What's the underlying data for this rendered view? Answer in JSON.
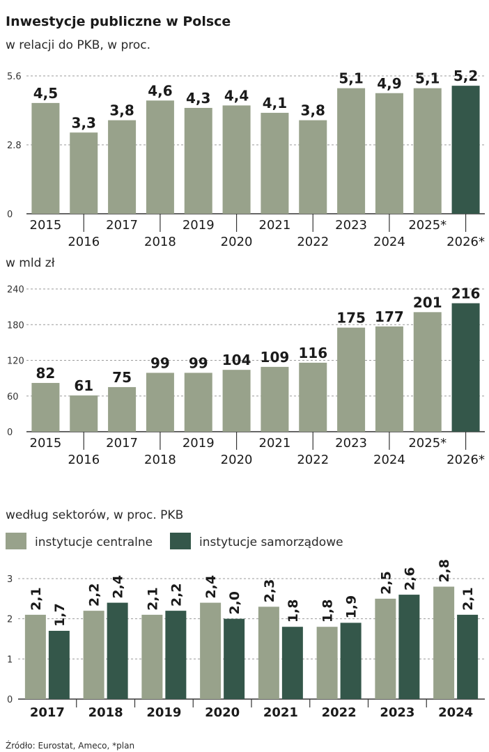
{
  "colors": {
    "bar_light": "#98a28b",
    "bar_dark": "#34574a",
    "text": "#1a1a1a"
  },
  "source": "Źródło: Eurostat, Ameco, *plan",
  "chart_data": [
    {
      "type": "bar",
      "title": "Inwestycje publiczne w Polsce",
      "subtitle": "w relacji do PKB, w proc.",
      "categories": [
        "2015",
        "2016",
        "2017",
        "2018",
        "2019",
        "2020",
        "2021",
        "2022",
        "2023",
        "2024",
        "2025*",
        "2026*"
      ],
      "values": [
        4.5,
        3.3,
        3.8,
        4.6,
        4.3,
        4.4,
        4.1,
        3.8,
        5.1,
        4.9,
        5.1,
        5.2
      ],
      "value_labels": [
        "4,5",
        "3,3",
        "3,8",
        "4,6",
        "4,3",
        "4,4",
        "4,1",
        "3,8",
        "5,1",
        "4,9",
        "5,1",
        "5,2"
      ],
      "highlight_index": 11,
      "yticks": [
        "0",
        "2.8",
        "5.6"
      ],
      "ylim": [
        0,
        5.6
      ],
      "grid": true
    },
    {
      "type": "bar",
      "subtitle": "w mld zł",
      "categories": [
        "2015",
        "2016",
        "2017",
        "2018",
        "2019",
        "2020",
        "2021",
        "2022",
        "2023",
        "2024",
        "2025*",
        "2026*"
      ],
      "values": [
        82,
        61,
        75,
        99,
        99,
        104,
        109,
        116,
        175,
        177,
        201,
        216
      ],
      "value_labels": [
        "82",
        "61",
        "75",
        "99",
        "99",
        "104",
        "109",
        "116",
        "175",
        "177",
        "201",
        "216"
      ],
      "highlight_index": 11,
      "yticks": [
        "0",
        "60",
        "120",
        "180",
        "240"
      ],
      "ylim": [
        0,
        240
      ],
      "grid": true
    },
    {
      "type": "bar",
      "subtitle": "według sektorów, w proc. PKB",
      "categories": [
        "2017",
        "2018",
        "2019",
        "2020",
        "2021",
        "2022",
        "2023",
        "2024"
      ],
      "series": [
        {
          "name": "instytucje centralne",
          "values": [
            2.1,
            2.2,
            2.1,
            2.4,
            2.3,
            1.8,
            2.5,
            2.8
          ],
          "value_labels": [
            "2,1",
            "2,2",
            "2,1",
            "2,4",
            "2,3",
            "1,8",
            "2,5",
            "2,8"
          ]
        },
        {
          "name": "instytucje samorządowe",
          "values": [
            1.7,
            2.4,
            2.2,
            2.0,
            1.8,
            1.9,
            2.6,
            2.1
          ],
          "value_labels": [
            "1,7",
            "2,4",
            "2,2",
            "2,0",
            "1,8",
            "1,9",
            "2,6",
            "2,1"
          ]
        }
      ],
      "yticks": [
        "0",
        "1",
        "2",
        "3"
      ],
      "ylim": [
        0,
        3
      ],
      "grid": true,
      "legend_position": "top-left"
    }
  ]
}
